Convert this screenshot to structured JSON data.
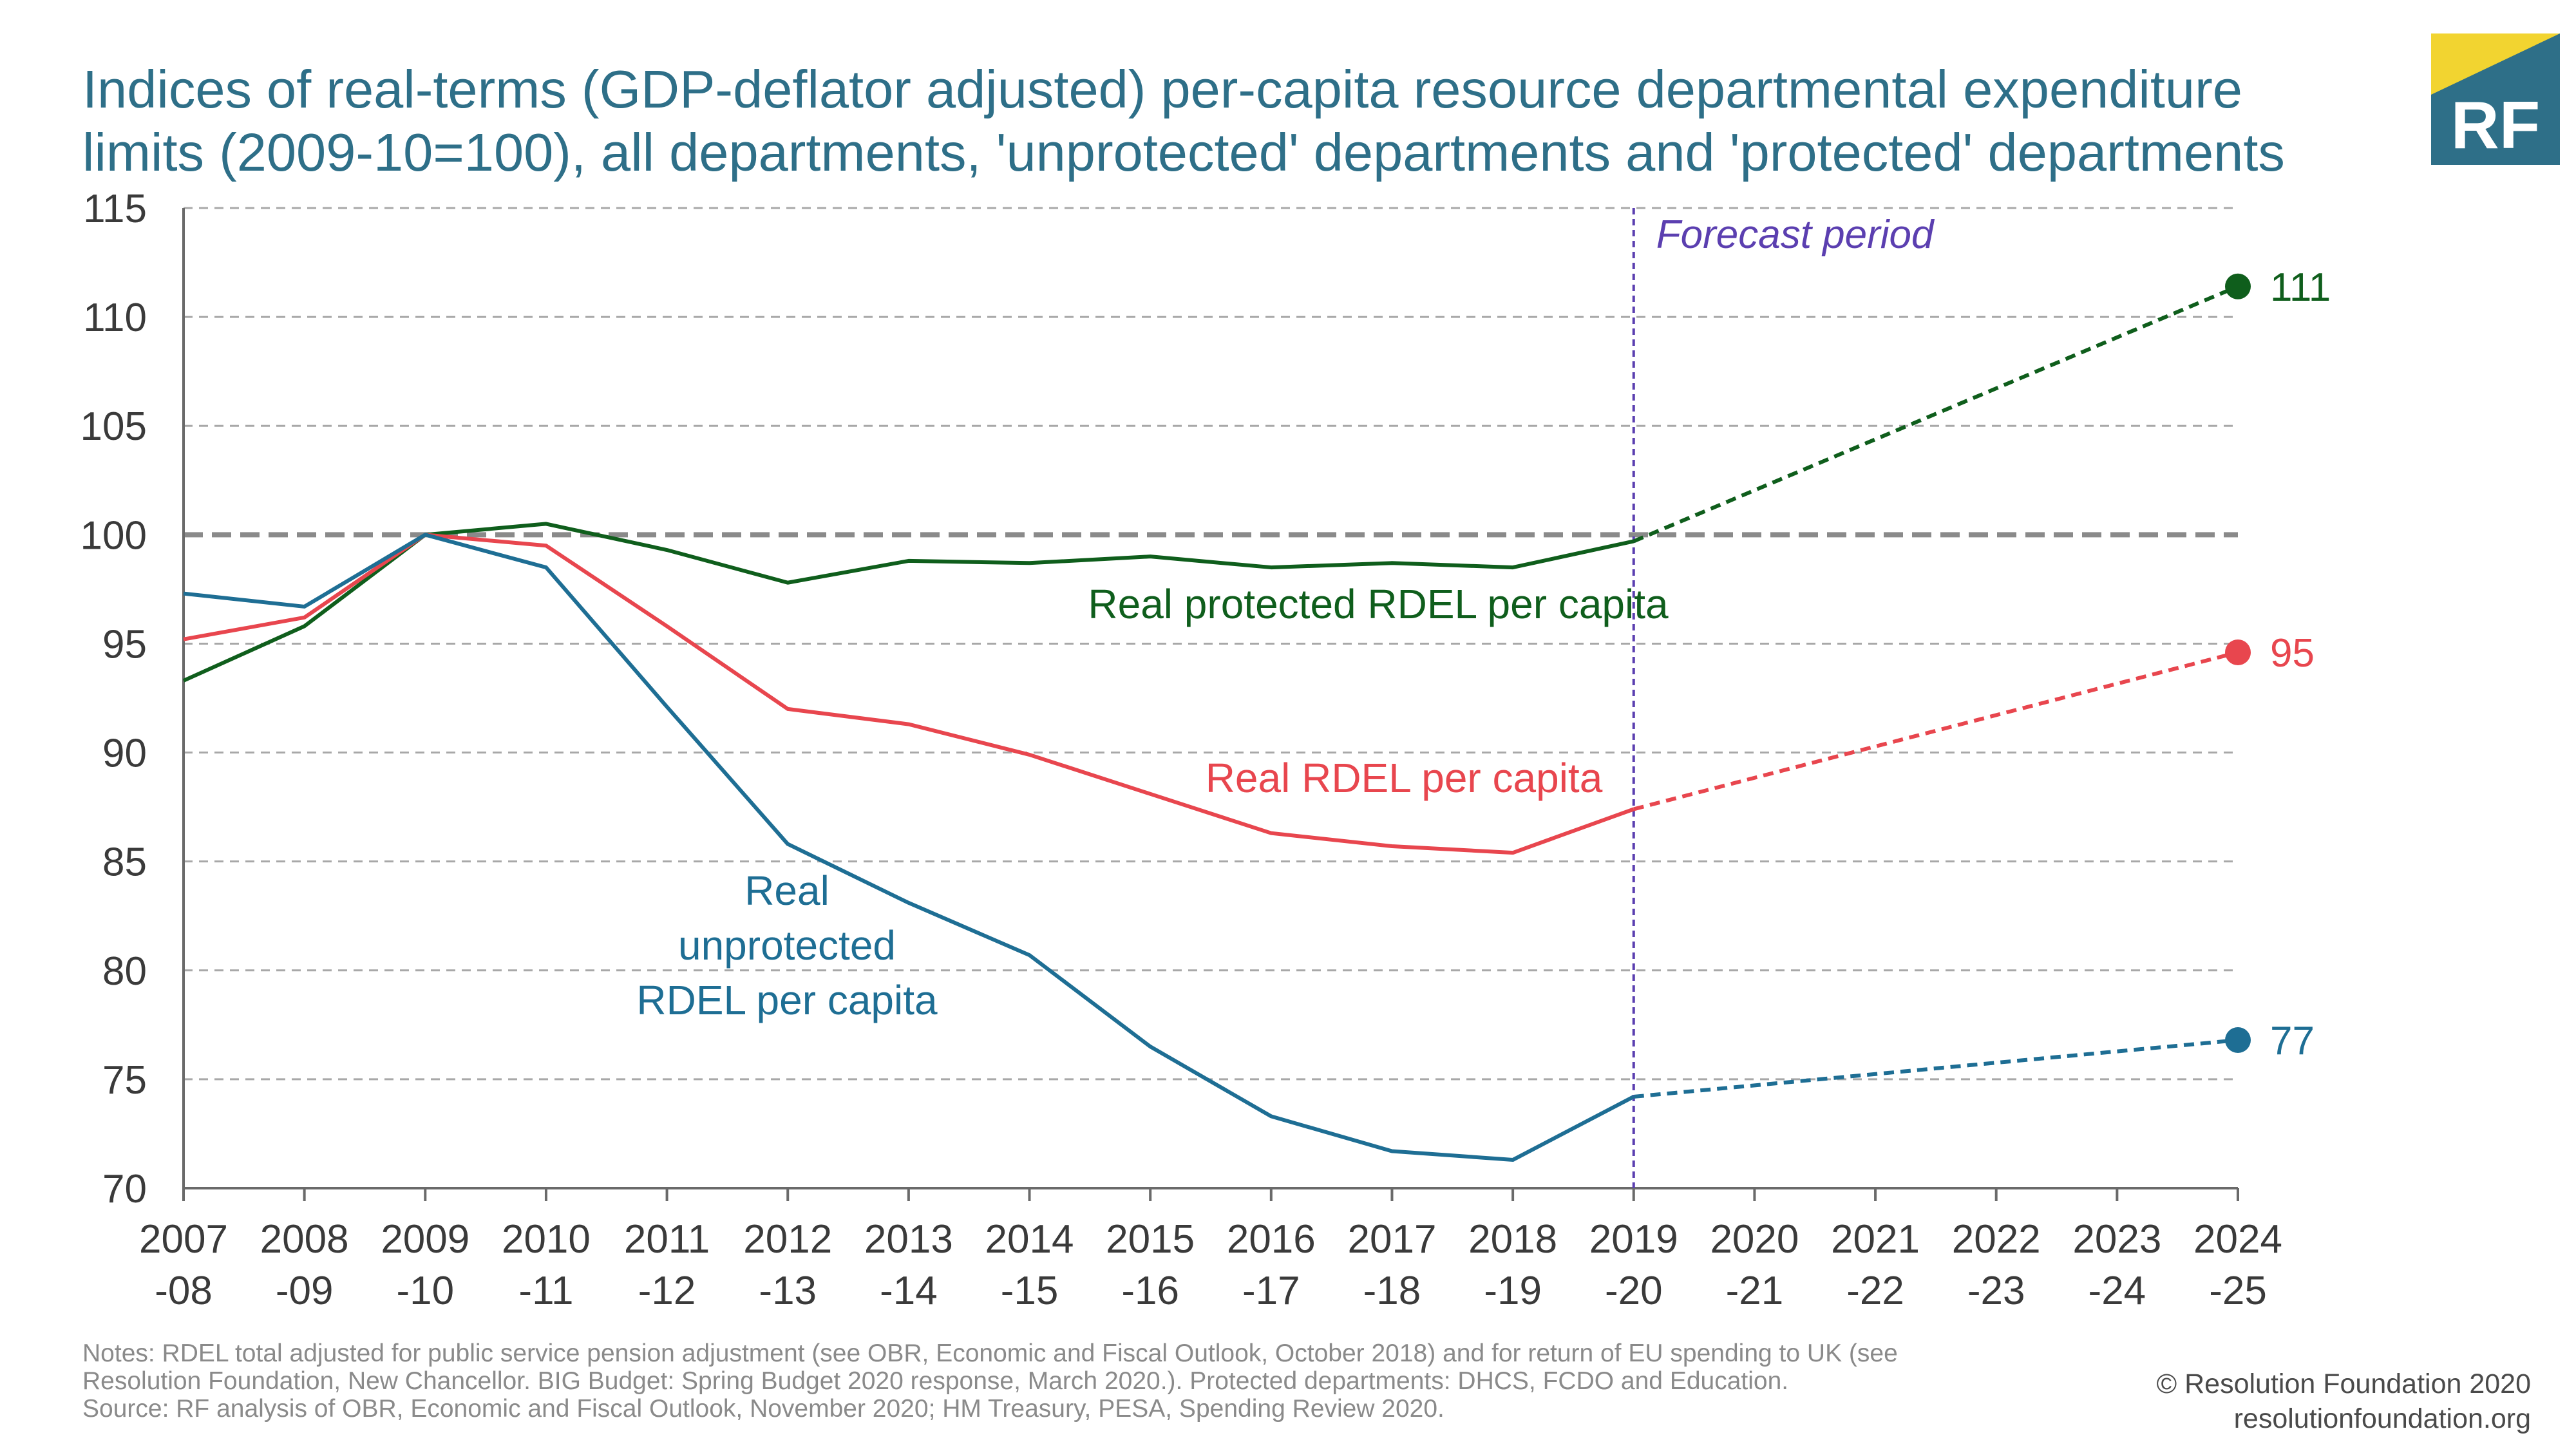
{
  "title": "Indices of real-terms (GDP-deflator adjusted) per-capita resource departmental expenditure limits (2009-10=100), all departments, 'unprotected' departments and 'protected' departments",
  "logo": {
    "text": "RF",
    "colors": {
      "box": "#2e6f88",
      "corner": "#f2d430"
    }
  },
  "notes": {
    "line1": "Notes: RDEL total adjusted for public service pension adjustment (see OBR, Economic and Fiscal Outlook, October 2018) and for return of EU spending to UK (see",
    "line2": "Resolution Foundation, New Chancellor. BIG Budget: Spring Budget 2020 response, March 2020.). Protected departments: DHCS, FCDO and Education.",
    "line3": "Source: RF analysis of OBR, Economic and Fiscal Outlook, November 2020; HM Treasury, PESA, Spending Review 2020."
  },
  "credit": {
    "line1": "© Resolution Foundation 2020",
    "line2": "resolutionfoundation.org"
  },
  "chart_data": {
    "type": "line",
    "categories": [
      [
        "2007",
        "-08"
      ],
      [
        "2008",
        "-09"
      ],
      [
        "2009",
        "-10"
      ],
      [
        "2010",
        "-11"
      ],
      [
        "2011",
        "-12"
      ],
      [
        "2012",
        "-13"
      ],
      [
        "2013",
        "-14"
      ],
      [
        "2014",
        "-15"
      ],
      [
        "2015",
        "-16"
      ],
      [
        "2016",
        "-17"
      ],
      [
        "2017",
        "-18"
      ],
      [
        "2018",
        "-19"
      ],
      [
        "2019",
        "-20"
      ],
      [
        "2020",
        "-21"
      ],
      [
        "2021",
        "-22"
      ],
      [
        "2022",
        "-23"
      ],
      [
        "2023",
        "-24"
      ],
      [
        "2024",
        "-25"
      ]
    ],
    "ylim": [
      70,
      115
    ],
    "yticks": [
      70,
      75,
      80,
      85,
      90,
      95,
      100,
      105,
      110,
      115
    ],
    "grid": true,
    "reference_line": 100,
    "forecast_start_index": 12,
    "forecast_label": "Forecast period",
    "series": [
      {
        "name": "Real protected RDEL per capita",
        "color": "#0f5e1c",
        "end_label": "111",
        "actual": {
          "x": [
            0,
            1,
            2,
            3,
            4,
            5,
            6,
            7,
            8,
            9,
            10,
            11,
            12
          ],
          "values": [
            93.3,
            95.8,
            100.0,
            100.5,
            99.3,
            97.8,
            98.8,
            98.7,
            99.0,
            98.5,
            98.7,
            98.5,
            99.7
          ]
        },
        "forecast": {
          "x": [
            12,
            17
          ],
          "values": [
            99.7,
            111.4
          ]
        }
      },
      {
        "name": "Real RDEL per capita",
        "color": "#e8464e",
        "end_label": "95",
        "actual": {
          "x": [
            0,
            1,
            2,
            3,
            4,
            5,
            6,
            7,
            8,
            9,
            10,
            11,
            12
          ],
          "values": [
            95.2,
            96.2,
            100.0,
            99.5,
            95.8,
            92.0,
            91.3,
            89.9,
            88.1,
            86.3,
            85.7,
            85.4,
            87.4
          ]
        },
        "forecast": {
          "x": [
            12,
            17
          ],
          "values": [
            87.4,
            94.6
          ]
        }
      },
      {
        "name": "Real unprotected RDEL per capita",
        "label_lines": [
          "Real",
          "unprotected",
          "RDEL per capita"
        ],
        "color": "#1e6e94",
        "end_label": "77",
        "actual": {
          "x": [
            0,
            1,
            2,
            3,
            4,
            5,
            6,
            7,
            8,
            9,
            10,
            11,
            12
          ],
          "values": [
            97.3,
            96.7,
            100.0,
            98.5,
            92.1,
            85.8,
            83.1,
            80.7,
            76.5,
            73.3,
            71.7,
            71.3,
            74.2
          ]
        },
        "forecast": {
          "x": [
            12,
            17
          ],
          "values": [
            74.2,
            76.8
          ]
        }
      }
    ]
  }
}
